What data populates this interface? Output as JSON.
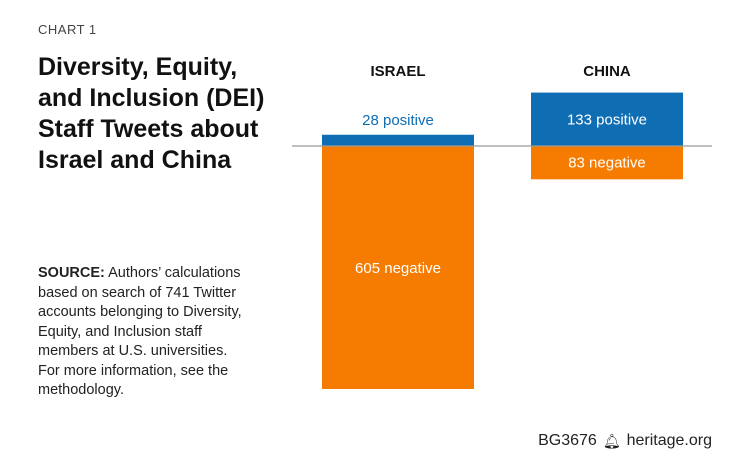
{
  "chart_label": "CHART 1",
  "title": "Diversity, Equity, and Inclusion (DEI) Staff Tweets about Israel and China",
  "source": {
    "label": "SOURCE:",
    "text": "Authors’ calculations based on search of 741 Twitter accounts belonging to Diversity, Equity, and Inclusion staff members at U.S. universities. For more information, see the methodology."
  },
  "footer": {
    "code": "BG3676",
    "site": "heritage.org"
  },
  "colors": {
    "positive": "#0f6db3",
    "negative": "#f57c00",
    "axis": "#9a9a9a"
  },
  "chart_data": {
    "type": "bar",
    "categories": [
      "ISRAEL",
      "CHINA"
    ],
    "series": [
      {
        "name": "positive",
        "values": [
          28,
          133
        ],
        "labels": [
          "28 positive",
          "133 positive"
        ]
      },
      {
        "name": "negative",
        "values": [
          605,
          83
        ],
        "labels": [
          "605 negative",
          "83 negative"
        ]
      }
    ],
    "title": "",
    "xlabel": "",
    "ylabel": "",
    "grid": false
  }
}
